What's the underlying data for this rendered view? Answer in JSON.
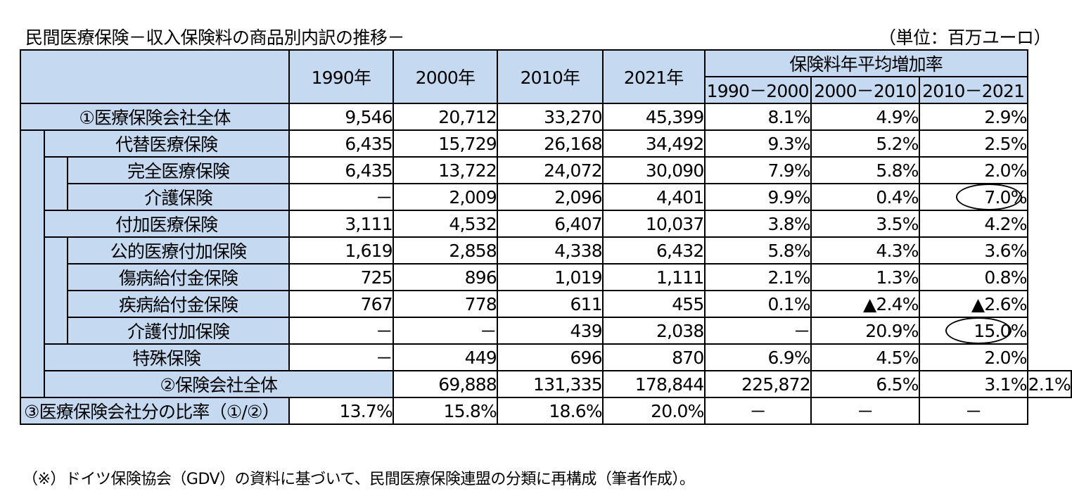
{
  "title": "民間医療保険－収入保険料の商品別内訳の推移－",
  "unit": "（単位：百万ユーロ）",
  "note": "（※）ドイツ保険協会（GDV）の資料に基づいて、民間医療保険連盟の分類に再構成（筆者作成）。",
  "headers": {
    "y1990": "1990年",
    "y2000": "2000年",
    "y2010": "2010年",
    "y2021": "2021年",
    "growth_group": "保険料年平均増加率",
    "g1": "1990－2000",
    "g2": "2000－2010",
    "g3": "2010－2021"
  },
  "rows": [
    {
      "label": "①医療保険会社全体",
      "v1990": "9,546",
      "v2000": "20,712",
      "v2010": "33,270",
      "v2021": "45,399",
      "g1": "8.1%",
      "g2": "4.9%",
      "g3": "2.9%"
    },
    {
      "label": "代替医療保険",
      "v1990": "6,435",
      "v2000": "15,729",
      "v2010": "26,168",
      "v2021": "34,492",
      "g1": "9.3%",
      "g2": "5.2%",
      "g3": "2.5%"
    },
    {
      "label": "完全医療保険",
      "v1990": "6,435",
      "v2000": "13,722",
      "v2010": "24,072",
      "v2021": "30,090",
      "g1": "7.9%",
      "g2": "5.8%",
      "g3": "2.0%"
    },
    {
      "label": "介護保険",
      "v1990": "－",
      "v2000": "2,009",
      "v2010": "2,096",
      "v2021": "4,401",
      "g1": "9.9%",
      "g2": "0.4%",
      "g3": "7.0%"
    },
    {
      "label": "付加医療保険",
      "v1990": "3,111",
      "v2000": "4,532",
      "v2010": "6,407",
      "v2021": "10,037",
      "g1": "3.8%",
      "g2": "3.5%",
      "g3": "4.2%"
    },
    {
      "label": "公的医療付加保険",
      "v1990": "1,619",
      "v2000": "2,858",
      "v2010": "4,338",
      "v2021": "6,432",
      "g1": "5.8%",
      "g2": "4.3%",
      "g3": "3.6%"
    },
    {
      "label": "傷病給付金保険",
      "v1990": "725",
      "v2000": "896",
      "v2010": "1,019",
      "v2021": "1,111",
      "g1": "2.1%",
      "g2": "1.3%",
      "g3": "0.8%"
    },
    {
      "label": "疾病給付金保険",
      "v1990": "767",
      "v2000": "778",
      "v2010": "611",
      "v2021": "455",
      "g1": "0.1%",
      "g2": "▲2.4%",
      "g3": "▲2.6%"
    },
    {
      "label": "介護付加保険",
      "v1990": "－",
      "v2000": "－",
      "v2010": "439",
      "v2021": "2,038",
      "g1": "－",
      "g2": "20.9%",
      "g3": "15.0%"
    },
    {
      "label": "特殊保険",
      "v1990": "－",
      "v2000": "449",
      "v2010": "696",
      "v2021": "870",
      "g1": "6.9%",
      "g2": "4.5%",
      "g3": "2.0%"
    },
    {
      "label": "②保険会社全体",
      "v1990": "69,888",
      "v2000": "131,335",
      "v2010": "178,844",
      "v2021": "225,872",
      "g1": "6.5%",
      "g2": "3.1%",
      "g3": "2.1%"
    },
    {
      "label": "③医療保険会社分の比率（①/②）",
      "v1990": "13.7%",
      "v2000": "15.8%",
      "v2010": "18.6%",
      "v2021": "20.0%",
      "g1": "－",
      "g2": "－",
      "g3": "－"
    }
  ]
}
